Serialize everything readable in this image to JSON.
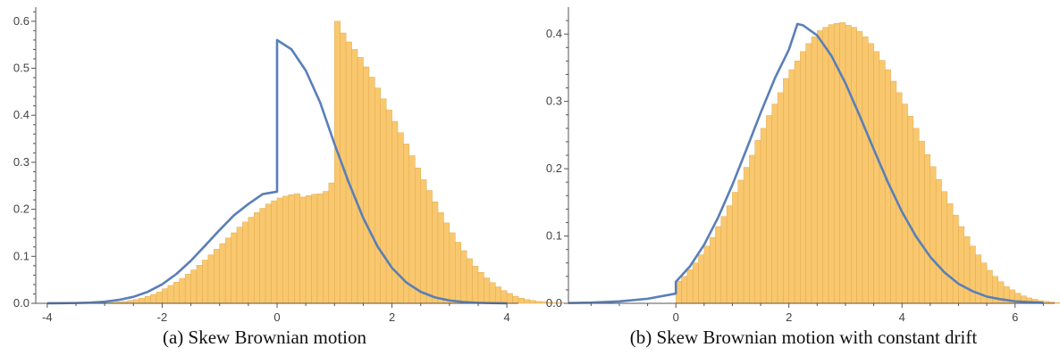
{
  "figures": [
    {
      "caption": "(a)  Skew Brownian motion",
      "chart_data": {
        "type": "bar",
        "title": "",
        "xlabel": "",
        "ylabel": "",
        "xlim": [
          -4.2,
          4.2
        ],
        "ylim": [
          0,
          0.63
        ],
        "x_ticks": [
          -4,
          -2,
          0,
          2,
          4
        ],
        "y_ticks": [
          0.0,
          0.1,
          0.2,
          0.3,
          0.4,
          0.5,
          0.6
        ],
        "x_tick_labels": [
          "-4",
          "-2",
          "0",
          "2",
          "4"
        ],
        "y_tick_labels": [
          "0.0",
          "0.1",
          "0.2",
          "0.3",
          "0.4",
          "0.5",
          "0.6"
        ],
        "bar_color": "#f9c86e",
        "curve_color": "#5a7fb8",
        "bins": {
          "start": -3.0,
          "width": 0.1,
          "values": [
            0.001,
            0.002,
            0.003,
            0.004,
            0.006,
            0.008,
            0.011,
            0.015,
            0.019,
            0.024,
            0.031,
            0.038,
            0.045,
            0.053,
            0.062,
            0.071,
            0.081,
            0.092,
            0.103,
            0.115,
            0.127,
            0.139,
            0.15,
            0.162,
            0.173,
            0.183,
            0.193,
            0.202,
            0.211,
            0.218,
            0.224,
            0.228,
            0.231,
            0.233,
            0.226,
            0.229,
            0.232,
            0.233,
            0.238,
            0.256,
            0.6,
            0.575,
            0.556,
            0.54,
            0.523,
            0.503,
            0.481,
            0.458,
            0.435,
            0.411,
            0.387,
            0.363,
            0.339,
            0.314,
            0.288,
            0.263,
            0.24,
            0.216,
            0.193,
            0.171,
            0.15,
            0.13,
            0.112,
            0.095,
            0.079,
            0.066,
            0.054,
            0.044,
            0.035,
            0.027,
            0.021,
            0.015,
            0.011,
            0.008,
            0.006,
            0.004,
            0.003,
            0.002,
            0.001,
            0.001
          ]
        },
        "density_curve": {
          "x": [
            -4.0,
            -3.75,
            -3.5,
            -3.25,
            -3.0,
            -2.75,
            -2.5,
            -2.25,
            -2.0,
            -1.75,
            -1.5,
            -1.25,
            -1.0,
            -0.75,
            -0.5,
            -0.25,
            0.0,
            0.0,
            0.25,
            0.5,
            0.75,
            1.0,
            1.25,
            1.5,
            1.75,
            2.0,
            2.25,
            2.5,
            2.75,
            3.0,
            3.25,
            3.5,
            3.75,
            4.0
          ],
          "y": [
            0.0001,
            0.0003,
            0.0007,
            0.0015,
            0.0035,
            0.0074,
            0.0139,
            0.0245,
            0.0404,
            0.0626,
            0.0906,
            0.123,
            0.156,
            0.1873,
            0.2112,
            0.2323,
            0.2375,
            0.56,
            0.5403,
            0.495,
            0.4272,
            0.3388,
            0.2564,
            0.1815,
            0.1207,
            0.0754,
            0.0443,
            0.0244,
            0.0126,
            0.0062,
            0.0028,
            0.0012,
            0.0005,
            0.0002
          ]
        }
      }
    },
    {
      "caption": "(b)  Skew Brownian motion with constant drift",
      "chart_data": {
        "type": "bar",
        "title": "",
        "xlabel": "",
        "ylabel": "",
        "xlim": [
          -1.9,
          6.7
        ],
        "ylim": [
          0,
          0.44
        ],
        "x_ticks": [
          0,
          2,
          4,
          6
        ],
        "y_ticks": [
          0.0,
          0.1,
          0.2,
          0.3,
          0.4
        ],
        "x_tick_labels": [
          "0",
          "2",
          "4",
          "6"
        ],
        "y_tick_labels": [
          "0.0",
          "0.1",
          "0.2",
          "0.3",
          "0.4"
        ],
        "bar_color": "#f9c86e",
        "curve_color": "#5a7fb8",
        "bins": {
          "start": 0.0,
          "width": 0.1,
          "values": [
            0.033,
            0.04,
            0.05,
            0.06,
            0.072,
            0.085,
            0.098,
            0.114,
            0.129,
            0.145,
            0.165,
            0.183,
            0.202,
            0.22,
            0.242,
            0.26,
            0.279,
            0.296,
            0.313,
            0.334,
            0.347,
            0.36,
            0.374,
            0.386,
            0.396,
            0.405,
            0.41,
            0.414,
            0.416,
            0.417,
            0.413,
            0.41,
            0.404,
            0.396,
            0.386,
            0.374,
            0.361,
            0.347,
            0.33,
            0.313,
            0.296,
            0.278,
            0.26,
            0.241,
            0.221,
            0.203,
            0.184,
            0.166,
            0.148,
            0.131,
            0.114,
            0.099,
            0.085,
            0.072,
            0.06,
            0.049,
            0.04,
            0.032,
            0.025,
            0.02,
            0.015,
            0.011,
            0.008,
            0.006,
            0.004,
            0.003,
            0.002,
            0.001
          ]
        },
        "density_curve": {
          "x": [
            -1.9,
            -1.5,
            -1.0,
            -0.5,
            0.0,
            0.0,
            0.25,
            0.5,
            0.75,
            1.0,
            1.25,
            1.5,
            1.75,
            2.0,
            2.15,
            2.25,
            2.5,
            2.75,
            3.0,
            3.25,
            3.5,
            3.75,
            4.0,
            4.25,
            4.5,
            4.75,
            5.0,
            5.25,
            5.5,
            5.75,
            6.0,
            6.5
          ],
          "y": [
            0.0005,
            0.0011,
            0.0029,
            0.0068,
            0.0145,
            0.032,
            0.055,
            0.087,
            0.128,
            0.176,
            0.229,
            0.283,
            0.334,
            0.377,
            0.415,
            0.413,
            0.398,
            0.368,
            0.327,
            0.279,
            0.229,
            0.18,
            0.136,
            0.099,
            0.069,
            0.046,
            0.029,
            0.018,
            0.01,
            0.006,
            0.003,
            0.0007
          ]
        }
      }
    }
  ]
}
